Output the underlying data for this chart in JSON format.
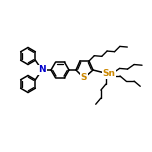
{
  "bg_color": "#ffffff",
  "bond_color": "#000000",
  "bond_lw": 1.1,
  "N_color": "#0000cc",
  "S_color": "#cc8800",
  "Sn_color": "#cc8800",
  "font_size_atom": 5.5,
  "fig_size": [
    1.52,
    1.52
  ],
  "dpi": 100,
  "xlim": [
    0,
    152
  ],
  "ylim": [
    0,
    152
  ]
}
